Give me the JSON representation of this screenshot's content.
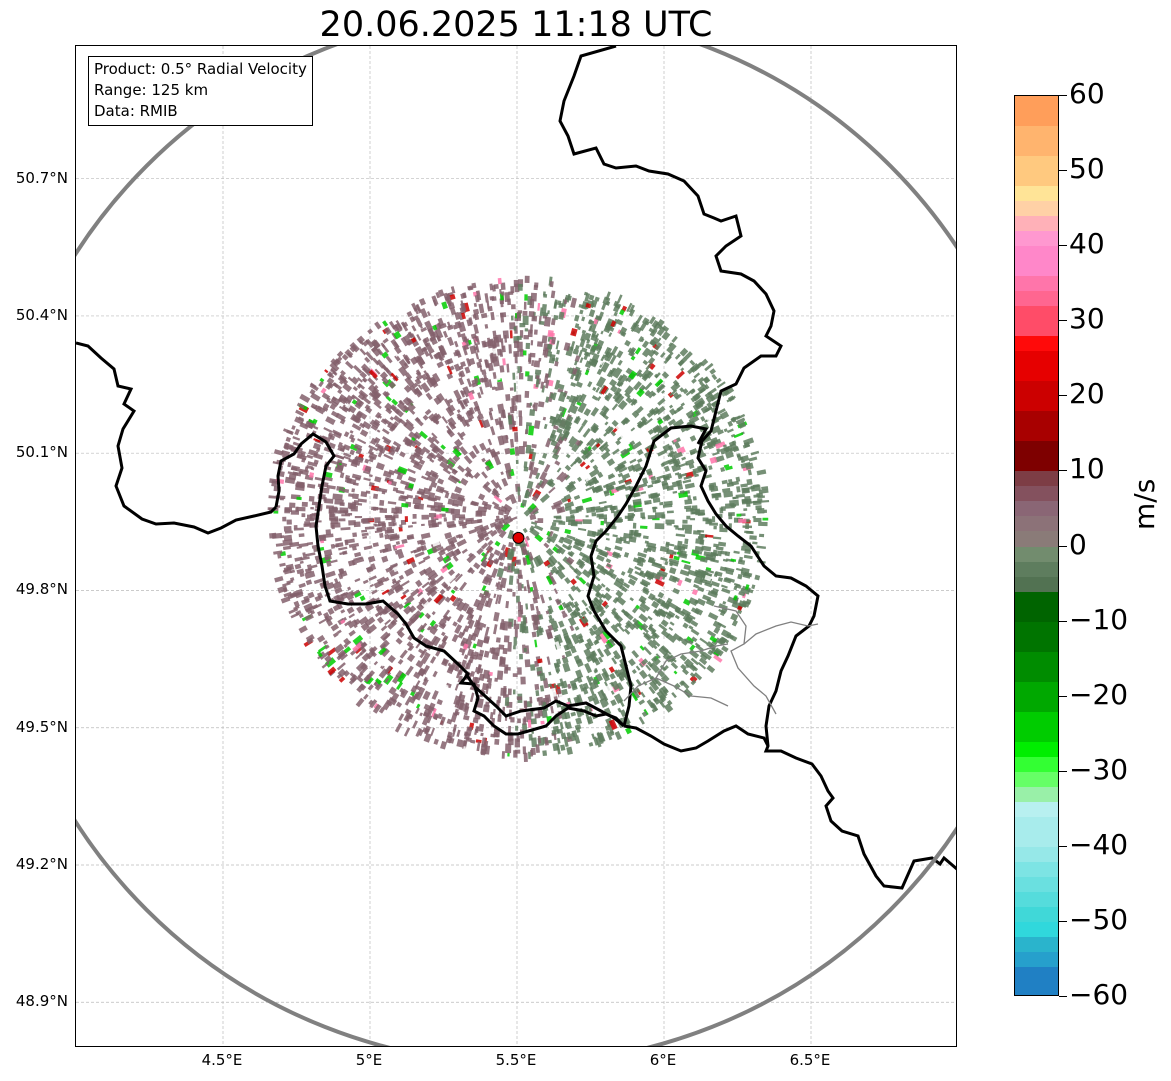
{
  "title": "20.06.2025 11:18 UTC",
  "info": {
    "product": "Product: 0.5° Radial Velocity",
    "range": "Range: 125 km",
    "data": "Data: RMIB"
  },
  "lat_labels": [
    "50.7°N",
    "50.4°N",
    "50.1°N",
    "49.8°N",
    "49.5°N",
    "49.2°N",
    "48.9°N"
  ],
  "lat_values": [
    50.7,
    50.4,
    50.1,
    49.8,
    49.5,
    49.2,
    48.9
  ],
  "lon_labels": [
    "4.5°E",
    "5°E",
    "5.5°E",
    "6°E",
    "6.5°E"
  ],
  "lon_values": [
    4.5,
    5.0,
    5.5,
    6.0,
    6.5
  ],
  "extent": {
    "lon_min": 4.0,
    "lon_max": 7.0,
    "lat_min": 48.8,
    "lat_max": 50.99
  },
  "radar": {
    "lon": 5.505,
    "lat": 49.915,
    "color": "#e00000"
  },
  "colorbar": {
    "unit": "m/s",
    "min": -60,
    "max": 60,
    "ticks": [
      "60",
      "50",
      "40",
      "30",
      "20",
      "10",
      "0",
      "−10",
      "−20",
      "−30",
      "−40",
      "−50",
      "−60"
    ],
    "tick_values": [
      60,
      50,
      40,
      30,
      20,
      10,
      0,
      -10,
      -20,
      -30,
      -40,
      -50,
      -60
    ],
    "bands": [
      {
        "from": 56,
        "to": 60,
        "color": "#ff9e5a"
      },
      {
        "from": 52,
        "to": 56,
        "color": "#ffb46e"
      },
      {
        "from": 48,
        "to": 52,
        "color": "#ffc97f"
      },
      {
        "from": 46,
        "to": 48,
        "color": "#ffe497"
      },
      {
        "from": 44,
        "to": 46,
        "color": "#ffd1a6"
      },
      {
        "from": 42,
        "to": 44,
        "color": "#ffb1b8"
      },
      {
        "from": 40,
        "to": 42,
        "color": "#ff98d0"
      },
      {
        "from": 36,
        "to": 40,
        "color": "#ff87c9"
      },
      {
        "from": 34,
        "to": 36,
        "color": "#ff75aa"
      },
      {
        "from": 32,
        "to": 34,
        "color": "#ff6690"
      },
      {
        "from": 28,
        "to": 32,
        "color": "#ff4c68"
      },
      {
        "from": 26,
        "to": 28,
        "color": "#ff0a0a"
      },
      {
        "from": 22,
        "to": 26,
        "color": "#e60000"
      },
      {
        "from": 18,
        "to": 22,
        "color": "#cc0000"
      },
      {
        "from": 14,
        "to": 18,
        "color": "#a80000"
      },
      {
        "from": 10,
        "to": 14,
        "color": "#7e0000"
      },
      {
        "from": 8,
        "to": 10,
        "color": "#7d3d45"
      },
      {
        "from": 6,
        "to": 8,
        "color": "#84515e"
      },
      {
        "from": 4,
        "to": 6,
        "color": "#8a6675"
      },
      {
        "from": 2,
        "to": 4,
        "color": "#8c7278"
      },
      {
        "from": 0,
        "to": 2,
        "color": "#8a7b78"
      },
      {
        "from": -2,
        "to": 0,
        "color": "#728c6e"
      },
      {
        "from": -4,
        "to": -2,
        "color": "#5e7d5e"
      },
      {
        "from": -6,
        "to": -4,
        "color": "#527252"
      },
      {
        "from": -10,
        "to": -6,
        "color": "#006400"
      },
      {
        "from": -14,
        "to": -10,
        "color": "#007400"
      },
      {
        "from": -18,
        "to": -14,
        "color": "#008c00"
      },
      {
        "from": -22,
        "to": -18,
        "color": "#00a800"
      },
      {
        "from": -26,
        "to": -22,
        "color": "#00cc00"
      },
      {
        "from": -28,
        "to": -26,
        "color": "#00ee00"
      },
      {
        "from": -30,
        "to": -28,
        "color": "#33ff33"
      },
      {
        "from": -32,
        "to": -30,
        "color": "#66ff66"
      },
      {
        "from": -34,
        "to": -32,
        "color": "#99f0a8"
      },
      {
        "from": -36,
        "to": -34,
        "color": "#b8f0f0"
      },
      {
        "from": -40,
        "to": -36,
        "color": "#a8ecec"
      },
      {
        "from": -42,
        "to": -40,
        "color": "#96e8e8"
      },
      {
        "from": -44,
        "to": -42,
        "color": "#7de4e4"
      },
      {
        "from": -46,
        "to": -44,
        "color": "#6ae0e0"
      },
      {
        "from": -48,
        "to": -46,
        "color": "#55dcdc"
      },
      {
        "from": -50,
        "to": -48,
        "color": "#40d8d8"
      },
      {
        "from": -52,
        "to": -50,
        "color": "#30d8dc"
      },
      {
        "from": -54,
        "to": -52,
        "color": "#2ab4cc"
      },
      {
        "from": -56,
        "to": -54,
        "color": "#26a0cc"
      },
      {
        "from": -60,
        "to": -56,
        "color": "#2080c4"
      }
    ]
  },
  "colors": {
    "inbound_field": "#5e7d5e",
    "outbound_field": "#84606c",
    "range_ring": "#808080",
    "border": "#000000",
    "region_border": "#808080"
  }
}
